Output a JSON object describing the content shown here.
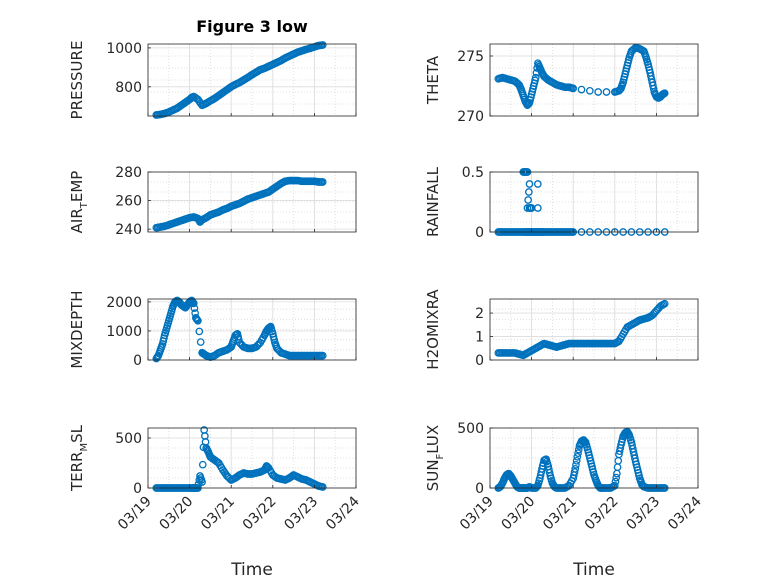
{
  "figure": {
    "title": "Figure 3 low",
    "marker_color": "#0072BD"
  },
  "chart_data": [
    {
      "type": "scatter",
      "ylabel": "PRESSURE",
      "ylabel_sub": "",
      "title": "Figure 3 low",
      "ylim": [
        650,
        1020
      ],
      "yticks": [
        800,
        1000
      ],
      "grid": true,
      "xrange": [
        "03/19",
        "03/24"
      ],
      "xticks": [],
      "xlabel": "",
      "x": [
        19.2,
        19.3,
        19.4,
        19.5,
        19.6,
        19.7,
        19.8,
        19.9,
        20.0,
        20.05,
        20.1,
        20.2,
        20.3,
        20.4,
        20.5,
        20.6,
        20.7,
        20.8,
        20.9,
        21.0,
        21.1,
        21.2,
        21.3,
        21.4,
        21.5,
        21.6,
        21.7,
        21.8,
        21.9,
        22.0,
        22.1,
        22.2,
        22.3,
        22.4,
        22.5,
        22.6,
        22.7,
        22.8,
        22.9,
        23.0,
        23.1,
        23.2
      ],
      "y": [
        655,
        658,
        663,
        670,
        680,
        690,
        705,
        720,
        735,
        745,
        750,
        735,
        705,
        715,
        728,
        740,
        755,
        770,
        785,
        800,
        812,
        822,
        835,
        848,
        862,
        875,
        888,
        895,
        905,
        915,
        925,
        935,
        948,
        958,
        968,
        978,
        985,
        992,
        998,
        1005,
        1012,
        1015
      ]
    },
    {
      "type": "scatter",
      "ylabel": "THETA",
      "ylabel_sub": "",
      "ylim": [
        270,
        276
      ],
      "yticks": [
        270,
        275
      ],
      "grid": true,
      "xrange": [
        "03/19",
        "03/24"
      ],
      "xticks": [],
      "xlabel": "",
      "x": [
        19.2,
        19.3,
        19.4,
        19.5,
        19.6,
        19.7,
        19.75,
        19.8,
        19.85,
        19.9,
        19.95,
        20.0,
        20.05,
        20.1,
        20.15,
        20.2,
        20.25,
        20.3,
        20.4,
        20.5,
        20.6,
        20.7,
        20.8,
        20.9,
        21.0,
        21.2,
        21.4,
        21.6,
        21.8,
        22.0,
        22.1,
        22.15,
        22.2,
        22.25,
        22.3,
        22.35,
        22.4,
        22.5,
        22.6,
        22.7,
        22.75,
        22.8,
        22.85,
        22.9,
        22.95,
        23.0,
        23.05,
        23.1,
        23.15,
        23.2
      ],
      "y": [
        273.1,
        273.2,
        273.1,
        273.0,
        272.9,
        272.6,
        272.2,
        271.7,
        271.2,
        270.9,
        271.1,
        271.8,
        272.5,
        273.2,
        274.4,
        274.0,
        273.6,
        273.3,
        273.0,
        272.8,
        272.6,
        272.5,
        272.4,
        272.4,
        272.3,
        272.2,
        272.1,
        272.0,
        272.0,
        272.0,
        272.1,
        272.3,
        272.8,
        273.5,
        274.2,
        274.9,
        275.4,
        275.7,
        275.6,
        275.4,
        274.9,
        274.3,
        273.6,
        272.8,
        272.0,
        271.6,
        271.5,
        271.6,
        271.8,
        271.9
      ]
    },
    {
      "type": "scatter",
      "ylabel": "AIR",
      "ylabel_sub": "T",
      "ylabel_post": "EMP",
      "ylim": [
        238,
        280
      ],
      "yticks": [
        240,
        260,
        280
      ],
      "grid": true,
      "xrange": [
        "03/19",
        "03/24"
      ],
      "xticks": [],
      "xlabel": "",
      "x": [
        19.2,
        19.3,
        19.4,
        19.5,
        19.6,
        19.7,
        19.8,
        19.9,
        20.0,
        20.1,
        20.2,
        20.25,
        20.3,
        20.4,
        20.5,
        20.6,
        20.7,
        20.8,
        20.9,
        21.0,
        21.1,
        21.2,
        21.3,
        21.4,
        21.5,
        21.6,
        21.7,
        21.8,
        21.9,
        22.0,
        22.1,
        22.2,
        22.3,
        22.4,
        22.5,
        22.6,
        22.7,
        22.8,
        22.9,
        23.0,
        23.1,
        23.2
      ],
      "y": [
        241,
        241.5,
        242,
        243,
        244,
        245,
        246,
        247,
        248,
        248.5,
        247.5,
        245,
        246.5,
        248,
        250,
        251,
        252,
        253.5,
        254.5,
        256,
        257,
        258,
        259.5,
        261,
        262,
        263,
        264,
        265,
        266,
        268,
        270,
        272,
        273.5,
        274,
        274,
        274,
        273.5,
        273.5,
        273.5,
        273.5,
        273,
        273
      ]
    },
    {
      "type": "scatter",
      "ylabel": "RAINFALL",
      "ylabel_sub": "",
      "ylim": [
        0,
        0.5
      ],
      "yticks": [
        0,
        0.5
      ],
      "grid": true,
      "xrange": [
        "03/19",
        "03/24"
      ],
      "xticks": [],
      "xlabel": "",
      "x": [
        19.2,
        19.3,
        19.4,
        19.5,
        19.6,
        19.7,
        19.8,
        19.85,
        19.9,
        19.95,
        20.0,
        20.05,
        20.1,
        20.15,
        20.2,
        20.25,
        20.3,
        20.4,
        20.5,
        20.6,
        20.7,
        20.8,
        20.9,
        21.0,
        21.2,
        21.4,
        21.6,
        21.8,
        22.0,
        22.2,
        22.4,
        22.6,
        22.8,
        23.0,
        23.2,
        19.8,
        19.85,
        19.9,
        19.9,
        19.95,
        19.95,
        20.0,
        20.15,
        20.15
      ],
      "y": [
        0,
        0,
        0,
        0,
        0,
        0,
        0,
        0,
        0,
        0,
        0,
        0,
        0,
        0,
        0,
        0,
        0,
        0,
        0,
        0,
        0,
        0,
        0,
        0,
        0,
        0,
        0,
        0,
        0,
        0,
        0,
        0,
        0,
        0,
        0,
        0.5,
        0.5,
        0.5,
        0.2,
        0.4,
        0.2,
        0.2,
        0.4,
        0.2
      ]
    },
    {
      "type": "scatter",
      "ylabel": "MIXDEPTH",
      "ylabel_sub": "",
      "ylim": [
        0,
        2100
      ],
      "yticks": [
        0,
        1000,
        2000
      ],
      "grid": true,
      "xrange": [
        "03/19",
        "03/24"
      ],
      "xticks": [],
      "xlabel": "",
      "x": [
        19.2,
        19.25,
        19.3,
        19.35,
        19.4,
        19.45,
        19.5,
        19.55,
        19.6,
        19.65,
        19.7,
        19.75,
        19.8,
        19.85,
        19.9,
        19.95,
        20.0,
        20.05,
        20.1,
        20.15,
        20.2,
        20.3,
        20.35,
        20.4,
        20.5,
        20.6,
        20.7,
        20.8,
        20.9,
        21.0,
        21.05,
        21.1,
        21.15,
        21.2,
        21.3,
        21.4,
        21.5,
        21.6,
        21.7,
        21.8,
        21.85,
        21.9,
        21.95,
        22.0,
        22.05,
        22.1,
        22.2,
        22.3,
        22.4,
        22.5,
        22.6,
        22.7,
        22.8,
        22.9,
        23.0,
        23.1,
        23.2
      ],
      "y": [
        50,
        150,
        350,
        550,
        850,
        1100,
        1350,
        1600,
        1850,
        2000,
        2050,
        2000,
        1900,
        1850,
        1800,
        1900,
        2000,
        2050,
        1950,
        1450,
        1350,
        250,
        200,
        150,
        100,
        150,
        250,
        300,
        350,
        450,
        650,
        850,
        900,
        600,
        450,
        400,
        400,
        450,
        600,
        850,
        1000,
        1100,
        1150,
        900,
        600,
        400,
        250,
        200,
        150,
        150,
        150,
        150,
        150,
        150,
        150,
        150,
        150
      ]
    },
    {
      "type": "scatter",
      "ylabel": "H2OMIXRA",
      "ylabel_sub": "",
      "ylim": [
        0,
        2.6
      ],
      "yticks": [
        0,
        1,
        2
      ],
      "grid": true,
      "xrange": [
        "03/19",
        "03/24"
      ],
      "xticks": [],
      "xlabel": "",
      "x": [
        19.2,
        19.3,
        19.4,
        19.5,
        19.6,
        19.7,
        19.8,
        19.9,
        20.0,
        20.1,
        20.2,
        20.3,
        20.4,
        20.5,
        20.6,
        20.7,
        20.8,
        20.9,
        21.0,
        21.1,
        21.2,
        21.3,
        21.4,
        21.5,
        21.6,
        21.7,
        21.8,
        21.9,
        22.0,
        22.1,
        22.2,
        22.3,
        22.4,
        22.5,
        22.6,
        22.7,
        22.8,
        22.9,
        23.0,
        23.1,
        23.2
      ],
      "y": [
        0.3,
        0.3,
        0.3,
        0.3,
        0.3,
        0.25,
        0.2,
        0.3,
        0.4,
        0.5,
        0.6,
        0.7,
        0.65,
        0.6,
        0.55,
        0.6,
        0.65,
        0.7,
        0.7,
        0.7,
        0.7,
        0.7,
        0.7,
        0.7,
        0.7,
        0.7,
        0.7,
        0.7,
        0.7,
        0.8,
        1.1,
        1.4,
        1.5,
        1.6,
        1.7,
        1.75,
        1.8,
        1.9,
        2.1,
        2.3,
        2.4
      ]
    },
    {
      "type": "scatter",
      "ylabel": "TERR",
      "ylabel_sub": "M",
      "ylabel_post": "SL",
      "ylim": [
        0,
        600
      ],
      "yticks": [
        0,
        500
      ],
      "grid": true,
      "xrange": [
        "03/19",
        "03/24"
      ],
      "xticks": [
        "03/19",
        "03/20",
        "03/21",
        "03/22",
        "03/23",
        "03/24"
      ],
      "xlabel": "Time",
      "x": [
        19.2,
        19.3,
        19.4,
        19.5,
        19.6,
        19.7,
        19.8,
        19.9,
        20.0,
        20.05,
        20.1,
        20.15,
        20.2,
        20.25,
        20.3,
        20.35,
        20.4,
        20.45,
        20.5,
        20.6,
        20.7,
        20.8,
        20.9,
        21.0,
        21.1,
        21.2,
        21.3,
        21.4,
        21.5,
        21.6,
        21.7,
        21.8,
        21.85,
        21.9,
        22.0,
        22.1,
        22.2,
        22.3,
        22.4,
        22.5,
        22.6,
        22.7,
        22.8,
        22.9,
        23.0,
        23.1,
        23.2
      ],
      "y": [
        0,
        0,
        0,
        0,
        0,
        0,
        0,
        0,
        0,
        0,
        0,
        0,
        0,
        120,
        60,
        580,
        400,
        360,
        310,
        280,
        250,
        180,
        120,
        80,
        100,
        130,
        150,
        140,
        140,
        150,
        160,
        180,
        220,
        200,
        130,
        100,
        90,
        80,
        100,
        130,
        110,
        90,
        80,
        60,
        40,
        20,
        10
      ]
    },
    {
      "type": "scatter",
      "ylabel": "SUN",
      "ylabel_sub": "F",
      "ylabel_post": "LUX",
      "ylim": [
        0,
        500
      ],
      "yticks": [
        0,
        500
      ],
      "grid": true,
      "xrange": [
        "03/19",
        "03/24"
      ],
      "xticks": [
        "03/19",
        "03/20",
        "03/21",
        "03/22",
        "03/23",
        "03/24"
      ],
      "xlabel": "Time",
      "x": [
        19.2,
        19.25,
        19.3,
        19.35,
        19.4,
        19.45,
        19.5,
        19.55,
        19.6,
        19.65,
        19.7,
        19.75,
        19.8,
        19.85,
        19.9,
        19.95,
        20.0,
        20.1,
        20.15,
        20.2,
        20.25,
        20.3,
        20.35,
        20.4,
        20.45,
        20.5,
        20.55,
        20.6,
        20.7,
        20.8,
        20.9,
        21.0,
        21.05,
        21.1,
        21.15,
        21.2,
        21.25,
        21.3,
        21.35,
        21.4,
        21.45,
        21.5,
        21.55,
        21.6,
        21.65,
        21.7,
        21.8,
        21.9,
        22.0,
        22.05,
        22.1,
        22.15,
        22.2,
        22.25,
        22.3,
        22.35,
        22.4,
        22.45,
        22.5,
        22.55,
        22.6,
        22.65,
        22.7,
        22.8,
        22.9,
        23.0,
        23.1,
        23.2
      ],
      "y": [
        0,
        10,
        40,
        80,
        110,
        120,
        100,
        70,
        40,
        10,
        0,
        0,
        0,
        0,
        0,
        10,
        0,
        0,
        20,
        80,
        160,
        230,
        240,
        180,
        100,
        40,
        10,
        0,
        0,
        0,
        20,
        80,
        160,
        260,
        350,
        390,
        400,
        380,
        320,
        250,
        180,
        110,
        60,
        20,
        0,
        0,
        0,
        0,
        20,
        120,
        280,
        360,
        430,
        460,
        470,
        440,
        380,
        300,
        220,
        150,
        80,
        30,
        10,
        0,
        0,
        0,
        0,
        0
      ]
    }
  ]
}
